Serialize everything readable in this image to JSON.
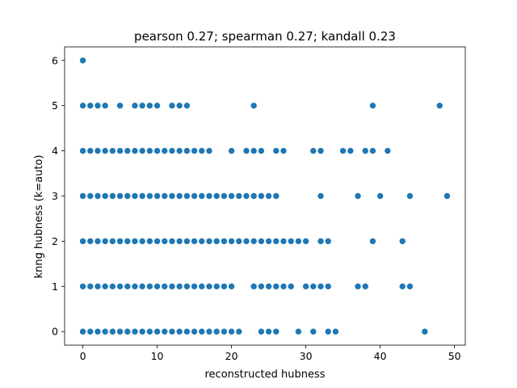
{
  "chart_data": {
    "type": "scatter",
    "title": "pearson 0.27; spearman 0.27; kandall 0.23",
    "xlabel": "reconstructed hubness",
    "ylabel": "knng hubness (k=auto)",
    "xlim": [
      -2.45,
      51.45
    ],
    "ylim": [
      -0.3,
      6.3
    ],
    "xticks": [
      0,
      10,
      20,
      30,
      40,
      50
    ],
    "yticks": [
      0,
      1,
      2,
      3,
      4,
      5,
      6
    ],
    "grid": false,
    "marker_color": "#1f77b4",
    "points": [
      [
        0,
        6
      ],
      [
        0,
        5
      ],
      [
        1,
        5
      ],
      [
        2,
        5
      ],
      [
        3,
        5
      ],
      [
        5,
        5
      ],
      [
        7,
        5
      ],
      [
        8,
        5
      ],
      [
        9,
        5
      ],
      [
        10,
        5
      ],
      [
        12,
        5
      ],
      [
        13,
        5
      ],
      [
        14,
        5
      ],
      [
        23,
        5
      ],
      [
        39,
        5
      ],
      [
        48,
        5
      ],
      [
        0,
        4
      ],
      [
        1,
        4
      ],
      [
        2,
        4
      ],
      [
        3,
        4
      ],
      [
        4,
        4
      ],
      [
        5,
        4
      ],
      [
        6,
        4
      ],
      [
        7,
        4
      ],
      [
        8,
        4
      ],
      [
        9,
        4
      ],
      [
        10,
        4
      ],
      [
        11,
        4
      ],
      [
        12,
        4
      ],
      [
        13,
        4
      ],
      [
        14,
        4
      ],
      [
        15,
        4
      ],
      [
        16,
        4
      ],
      [
        17,
        4
      ],
      [
        20,
        4
      ],
      [
        22,
        4
      ],
      [
        23,
        4
      ],
      [
        24,
        4
      ],
      [
        26,
        4
      ],
      [
        27,
        4
      ],
      [
        31,
        4
      ],
      [
        32,
        4
      ],
      [
        35,
        4
      ],
      [
        36,
        4
      ],
      [
        38,
        4
      ],
      [
        39,
        4
      ],
      [
        41,
        4
      ],
      [
        0,
        3
      ],
      [
        1,
        3
      ],
      [
        2,
        3
      ],
      [
        3,
        3
      ],
      [
        4,
        3
      ],
      [
        5,
        3
      ],
      [
        6,
        3
      ],
      [
        7,
        3
      ],
      [
        8,
        3
      ],
      [
        9,
        3
      ],
      [
        10,
        3
      ],
      [
        11,
        3
      ],
      [
        12,
        3
      ],
      [
        13,
        3
      ],
      [
        14,
        3
      ],
      [
        15,
        3
      ],
      [
        16,
        3
      ],
      [
        17,
        3
      ],
      [
        18,
        3
      ],
      [
        19,
        3
      ],
      [
        20,
        3
      ],
      [
        21,
        3
      ],
      [
        22,
        3
      ],
      [
        23,
        3
      ],
      [
        24,
        3
      ],
      [
        25,
        3
      ],
      [
        26,
        3
      ],
      [
        32,
        3
      ],
      [
        37,
        3
      ],
      [
        40,
        3
      ],
      [
        44,
        3
      ],
      [
        49,
        3
      ],
      [
        0,
        2
      ],
      [
        1,
        2
      ],
      [
        2,
        2
      ],
      [
        3,
        2
      ],
      [
        4,
        2
      ],
      [
        5,
        2
      ],
      [
        6,
        2
      ],
      [
        7,
        2
      ],
      [
        8,
        2
      ],
      [
        9,
        2
      ],
      [
        10,
        2
      ],
      [
        11,
        2
      ],
      [
        12,
        2
      ],
      [
        13,
        2
      ],
      [
        14,
        2
      ],
      [
        15,
        2
      ],
      [
        16,
        2
      ],
      [
        17,
        2
      ],
      [
        18,
        2
      ],
      [
        19,
        2
      ],
      [
        20,
        2
      ],
      [
        21,
        2
      ],
      [
        22,
        2
      ],
      [
        23,
        2
      ],
      [
        24,
        2
      ],
      [
        25,
        2
      ],
      [
        26,
        2
      ],
      [
        27,
        2
      ],
      [
        28,
        2
      ],
      [
        29,
        2
      ],
      [
        30,
        2
      ],
      [
        32,
        2
      ],
      [
        33,
        2
      ],
      [
        39,
        2
      ],
      [
        43,
        2
      ],
      [
        0,
        1
      ],
      [
        1,
        1
      ],
      [
        2,
        1
      ],
      [
        3,
        1
      ],
      [
        4,
        1
      ],
      [
        5,
        1
      ],
      [
        6,
        1
      ],
      [
        7,
        1
      ],
      [
        8,
        1
      ],
      [
        9,
        1
      ],
      [
        10,
        1
      ],
      [
        11,
        1
      ],
      [
        12,
        1
      ],
      [
        13,
        1
      ],
      [
        14,
        1
      ],
      [
        15,
        1
      ],
      [
        16,
        1
      ],
      [
        17,
        1
      ],
      [
        18,
        1
      ],
      [
        19,
        1
      ],
      [
        20,
        1
      ],
      [
        23,
        1
      ],
      [
        24,
        1
      ],
      [
        25,
        1
      ],
      [
        26,
        1
      ],
      [
        27,
        1
      ],
      [
        28,
        1
      ],
      [
        30,
        1
      ],
      [
        31,
        1
      ],
      [
        32,
        1
      ],
      [
        33,
        1
      ],
      [
        37,
        1
      ],
      [
        38,
        1
      ],
      [
        43,
        1
      ],
      [
        44,
        1
      ],
      [
        0,
        0
      ],
      [
        1,
        0
      ],
      [
        2,
        0
      ],
      [
        3,
        0
      ],
      [
        4,
        0
      ],
      [
        5,
        0
      ],
      [
        6,
        0
      ],
      [
        7,
        0
      ],
      [
        8,
        0
      ],
      [
        9,
        0
      ],
      [
        10,
        0
      ],
      [
        11,
        0
      ],
      [
        12,
        0
      ],
      [
        13,
        0
      ],
      [
        14,
        0
      ],
      [
        15,
        0
      ],
      [
        16,
        0
      ],
      [
        17,
        0
      ],
      [
        18,
        0
      ],
      [
        19,
        0
      ],
      [
        20,
        0
      ],
      [
        21,
        0
      ],
      [
        24,
        0
      ],
      [
        25,
        0
      ],
      [
        26,
        0
      ],
      [
        29,
        0
      ],
      [
        31,
        0
      ],
      [
        33,
        0
      ],
      [
        34,
        0
      ],
      [
        46,
        0
      ]
    ]
  }
}
